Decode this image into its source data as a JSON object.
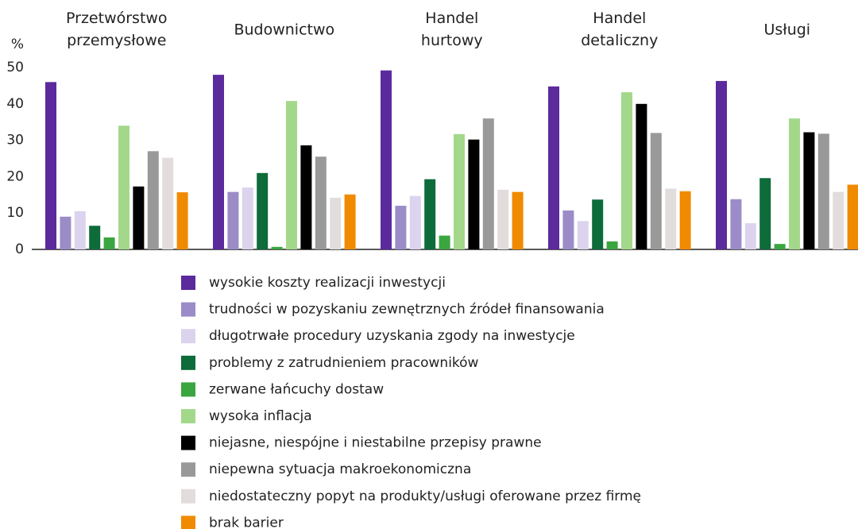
{
  "chart_data": {
    "type": "bar",
    "y_label": "%",
    "categories": [
      "Przetwórstwo przemysłowe",
      "Budownictwo",
      "Handel hurtowy",
      "Handel detaliczny",
      "Usługi"
    ],
    "ylim": [
      0,
      50
    ],
    "yticks": [
      0,
      10,
      20,
      30,
      40,
      50
    ],
    "grid": false,
    "legend": "bottom",
    "series": [
      {
        "name": "wysokie koszty realizacji inwestycji",
        "color": "#5b2a9c",
        "values": [
          46,
          48,
          49.2,
          44.8,
          46.3
        ]
      },
      {
        "name": "trudności w pozyskaniu zewnętrznych źródeł finansowania",
        "color": "#9b8cc8",
        "values": [
          9,
          15.8,
          12,
          10.7,
          13.8
        ]
      },
      {
        "name": "długotrwałe procedury uzyskania zgody na inwestycje",
        "color": "#dcd3ee",
        "values": [
          10.5,
          17,
          14.7,
          7.8,
          7.2
        ]
      },
      {
        "name": "problemy z zatrudnieniem pracowników",
        "color": "#0e6b3a",
        "values": [
          6.5,
          21,
          19.3,
          13.7,
          19.6
        ]
      },
      {
        "name": "zerwane łańcuchy dostaw",
        "color": "#3aa640",
        "values": [
          3.3,
          0.7,
          3.8,
          2.2,
          1.5
        ]
      },
      {
        "name": "wysoka inflacja",
        "color": "#a3d88a",
        "values": [
          34,
          40.8,
          31.7,
          43.2,
          36
        ]
      },
      {
        "name": "niejasne, niespójne i niestabilne przepisy prawne",
        "color": "#000000",
        "values": [
          17.3,
          28.6,
          30.2,
          40,
          32.2
        ]
      },
      {
        "name": "niepewna sytuacja makroekonomiczna",
        "color": "#999999",
        "values": [
          27,
          25.5,
          36,
          32,
          31.8
        ]
      },
      {
        "name": "niedostateczny popyt na produkty/usługi oferowane przez firmę",
        "color": "#e2dcdc",
        "values": [
          25.2,
          14.2,
          16.4,
          16.7,
          15.8
        ]
      },
      {
        "name": "brak barier",
        "color": "#f08a00",
        "values": [
          15.7,
          15.1,
          15.8,
          16,
          17.8
        ]
      }
    ]
  }
}
